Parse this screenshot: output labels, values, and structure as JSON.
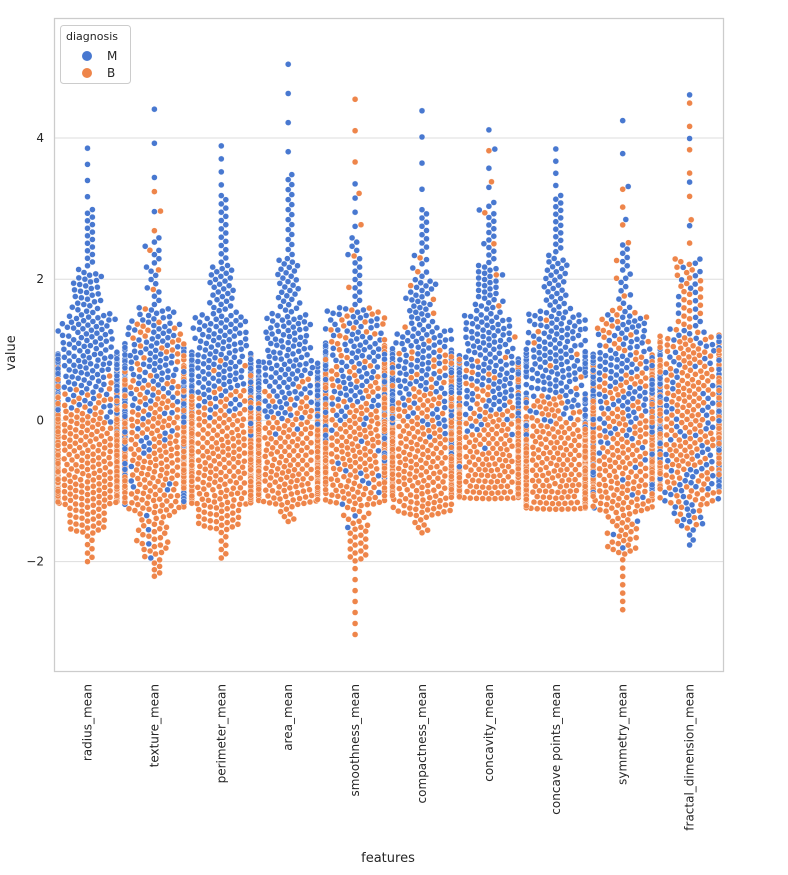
{
  "chart_data": {
    "type": "scatter",
    "subtype": "swarm",
    "title": "",
    "xlabel": "features",
    "ylabel": "value",
    "ylim": [
      -3.55,
      5.7
    ],
    "yticks": [
      -2,
      0,
      2,
      4
    ],
    "ytick_labels": [
      "−2",
      "0",
      "2",
      "4"
    ],
    "grid": true,
    "legend": {
      "title": "diagnosis",
      "placement": "upper-left",
      "entries": [
        {
          "label": "M",
          "color": "#4878d0"
        },
        {
          "label": "B",
          "color": "#ee854a"
        }
      ]
    },
    "categories": [
      "radius_mean",
      "texture_mean",
      "perimeter_mean",
      "area_mean",
      "smoothness_mean",
      "compactness_mean",
      "concavity_mean",
      "concave points_mean",
      "symmetry_mean",
      "fractal_dimension_mean"
    ],
    "series": [
      {
        "name": "M",
        "color": "#4878d0",
        "count": 212,
        "quantile_probs": [
          0,
          0.02,
          0.1,
          0.25,
          0.5,
          0.75,
          0.9,
          0.98,
          1
        ],
        "quantiles": [
          [
            -0.2,
            0.1,
            0.35,
            0.6,
            0.95,
            1.5,
            2.1,
            3.0,
            3.97
          ],
          [
            -2.05,
            -1.2,
            -0.5,
            0.0,
            0.55,
            1.1,
            1.6,
            2.6,
            4.65
          ],
          [
            -0.25,
            0.1,
            0.35,
            0.6,
            0.95,
            1.5,
            2.2,
            3.2,
            3.98
          ],
          [
            -0.3,
            0.0,
            0.2,
            0.45,
            0.85,
            1.5,
            2.3,
            3.5,
            5.25
          ],
          [
            -1.6,
            -0.9,
            -0.3,
            0.15,
            0.6,
            1.1,
            1.6,
            2.6,
            3.45
          ],
          [
            -1.0,
            -0.5,
            -0.1,
            0.3,
            0.75,
            1.3,
            2.0,
            3.0,
            4.57
          ],
          [
            -0.85,
            -0.3,
            0.1,
            0.45,
            0.9,
            1.5,
            2.2,
            3.1,
            4.25
          ],
          [
            -0.7,
            -0.1,
            0.25,
            0.6,
            1.0,
            1.55,
            2.3,
            3.2,
            3.93
          ],
          [
            -1.9,
            -1.1,
            -0.5,
            0.0,
            0.45,
            0.95,
            1.5,
            2.5,
            4.48
          ],
          [
            -1.8,
            -1.5,
            -1.0,
            -0.55,
            0.0,
            0.6,
            1.3,
            2.3,
            4.92
          ]
        ]
      },
      {
        "name": "B",
        "color": "#ee854a",
        "count": 357,
        "quantile_probs": [
          0,
          0.02,
          0.1,
          0.25,
          0.5,
          0.75,
          0.9,
          0.98,
          1
        ],
        "quantiles": [
          [
            -2.03,
            -1.6,
            -1.2,
            -0.9,
            -0.55,
            -0.2,
            0.1,
            0.45,
            0.8
          ],
          [
            -2.23,
            -1.9,
            -1.3,
            -0.85,
            -0.4,
            0.05,
            0.6,
            1.4,
            3.38
          ],
          [
            -1.98,
            -1.55,
            -1.2,
            -0.9,
            -0.55,
            -0.2,
            0.1,
            0.45,
            0.95
          ],
          [
            -1.45,
            -1.2,
            -1.0,
            -0.8,
            -0.55,
            -0.25,
            0.0,
            0.35,
            0.6
          ],
          [
            -3.11,
            -2.0,
            -1.2,
            -0.75,
            -0.25,
            0.25,
            0.8,
            1.6,
            4.77
          ],
          [
            -1.61,
            -1.35,
            -1.1,
            -0.8,
            -0.45,
            -0.05,
            0.35,
            1.0,
            2.4
          ],
          [
            -1.11,
            -1.1,
            -1.0,
            -0.85,
            -0.55,
            -0.2,
            0.15,
            0.9,
            4.04
          ],
          [
            -1.26,
            -1.25,
            -1.15,
            -0.95,
            -0.65,
            -0.35,
            -0.05,
            0.35,
            1.5
          ],
          [
            -2.74,
            -1.9,
            -1.3,
            -0.85,
            -0.35,
            0.15,
            0.7,
            1.6,
            3.4
          ],
          [
            -1.55,
            -1.2,
            -0.8,
            -0.35,
            0.1,
            0.6,
            1.2,
            2.3,
            4.66
          ]
        ]
      }
    ]
  }
}
